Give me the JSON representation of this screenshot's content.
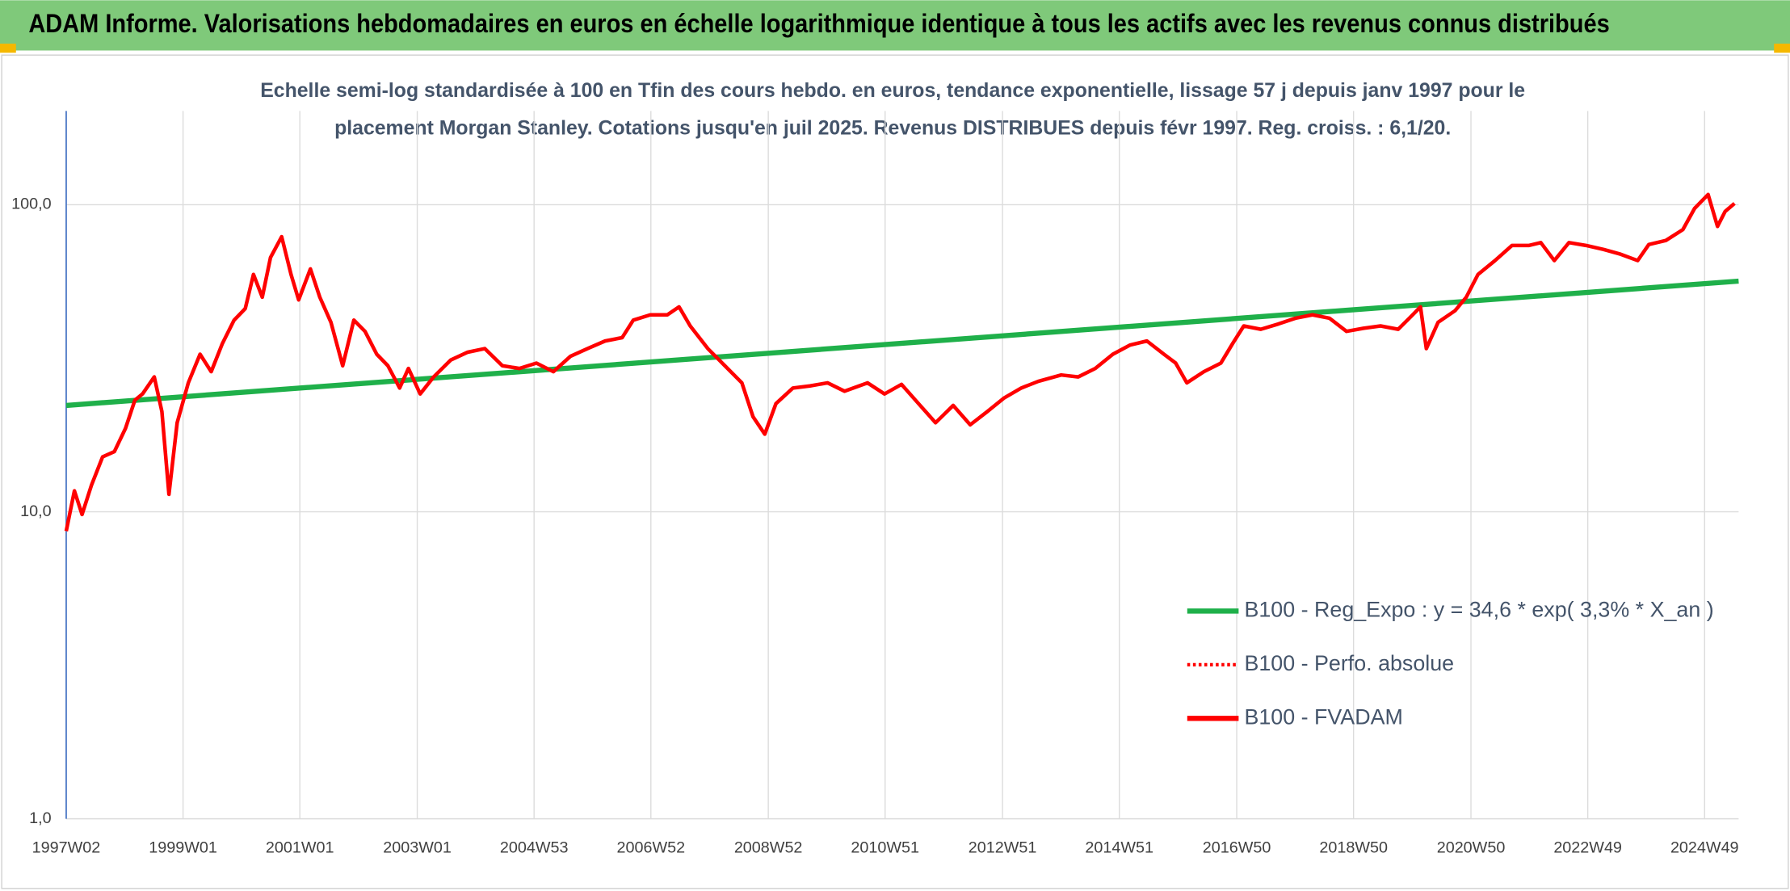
{
  "chart_data": {
    "type": "line",
    "header": "ADAM Informe. Valorisations hebdomadaires en euros en échelle logarithmique identique à tous les actifs avec les revenus connus distribués",
    "subtitle": [
      "Echelle semi-log standardisée à 100 en Tfin des cours hebdo. en euros, tendance exponentielle, lissage 57 j depuis janv 1997 pour le",
      "placement Morgan Stanley. Cotations jusqu'en juil 2025. Revenus DISTRIBUES depuis févr 1997. Reg. croiss. : 6,1/20."
    ],
    "log_scale": true,
    "grid": true,
    "legend": "lower right",
    "xlim": [
      1997.02,
      2025.51
    ],
    "xticks": [
      {
        "value": 1997.02,
        "label": "1997W02"
      },
      {
        "value": 1999.01,
        "label": "1999W01"
      },
      {
        "value": 2001.0,
        "label": "2001W01"
      },
      {
        "value": 2003.0,
        "label": "2003W01"
      },
      {
        "value": 2004.99,
        "label": "2004W53"
      },
      {
        "value": 2006.98,
        "label": "2006W52"
      },
      {
        "value": 2008.98,
        "label": "2008W52"
      },
      {
        "value": 2010.97,
        "label": "2010W51"
      },
      {
        "value": 2012.97,
        "label": "2012W51"
      },
      {
        "value": 2014.96,
        "label": "2014W51"
      },
      {
        "value": 2016.96,
        "label": "2016W50"
      },
      {
        "value": 2018.95,
        "label": "2018W50"
      },
      {
        "value": 2020.95,
        "label": "2020W50"
      },
      {
        "value": 2022.94,
        "label": "2022W49"
      },
      {
        "value": 2024.93,
        "label": "2024W49"
      }
    ],
    "ylim": [
      1,
      202
    ],
    "yticks": [
      {
        "value": 1,
        "label": "1,0"
      },
      {
        "value": 10,
        "label": "10,0"
      },
      {
        "value": 100,
        "label": "100,0"
      }
    ],
    "series": [
      {
        "name": "B100 - Reg_Expo : y = 34,6 * exp( 3,3% *  X_an )",
        "color": "#1fb04a",
        "style": "solid",
        "x": [
          1997.02,
          2025.51
        ],
        "values": [
          22.2,
          56.4
        ]
      },
      {
        "name": "B100 - Perfo. absolue",
        "color": "#ff0000",
        "style": "dotted"
      },
      {
        "name": "B100 - FVADAM",
        "color": "#ff0000",
        "style": "solid",
        "x": [
          1997.02,
          1997.16,
          1997.29,
          1997.45,
          1997.64,
          1997.84,
          1998.03,
          1998.19,
          1998.32,
          1998.52,
          1998.65,
          1998.77,
          1998.91,
          1999.1,
          1999.3,
          1999.49,
          1999.68,
          1999.88,
          2000.07,
          2000.21,
          2000.36,
          2000.5,
          2000.69,
          2000.85,
          2000.98,
          2001.18,
          2001.34,
          2001.53,
          2001.73,
          2001.92,
          2002.11,
          2002.31,
          2002.5,
          2002.7,
          2002.85,
          2003.05,
          2003.28,
          2003.57,
          2003.86,
          2004.15,
          2004.45,
          2004.74,
          2005.03,
          2005.32,
          2005.61,
          2005.9,
          2006.2,
          2006.49,
          2006.68,
          2006.97,
          2007.26,
          2007.46,
          2007.65,
          2007.95,
          2008.24,
          2008.53,
          2008.72,
          2008.92,
          2009.11,
          2009.4,
          2009.69,
          2009.99,
          2010.28,
          2010.67,
          2010.96,
          2011.25,
          2011.54,
          2011.83,
          2012.13,
          2012.42,
          2012.71,
          2013.0,
          2013.29,
          2013.58,
          2013.97,
          2014.26,
          2014.55,
          2014.85,
          2015.14,
          2015.43,
          2015.72,
          2015.92,
          2016.11,
          2016.4,
          2016.69,
          2016.89,
          2017.08,
          2017.37,
          2017.67,
          2017.96,
          2018.25,
          2018.54,
          2018.83,
          2019.12,
          2019.41,
          2019.71,
          2019.9,
          2020.09,
          2020.19,
          2020.39,
          2020.68,
          2020.87,
          2021.07,
          2021.36,
          2021.65,
          2021.94,
          2022.14,
          2022.37,
          2022.62,
          2022.91,
          2023.21,
          2023.5,
          2023.79,
          2023.98,
          2024.27,
          2024.56,
          2024.76,
          2024.99,
          2025.15,
          2025.28,
          2025.44
        ],
        "values": [
          8.65,
          11.7,
          9.8,
          12.2,
          15.1,
          15.7,
          18.7,
          23.1,
          24.2,
          27.5,
          21.2,
          11.4,
          19.5,
          26.3,
          32.6,
          28.6,
          35.3,
          42.1,
          45.9,
          59.3,
          50.0,
          67.3,
          78.7,
          59.3,
          49.0,
          61.8,
          50.0,
          41.4,
          29.9,
          42.1,
          38.7,
          32.6,
          29.9,
          25.3,
          29.3,
          24.2,
          27.5,
          31.2,
          33.1,
          34.0,
          29.9,
          29.3,
          30.5,
          28.6,
          32.1,
          34.0,
          36.0,
          36.9,
          42.1,
          43.8,
          43.8,
          46.5,
          40.3,
          34.0,
          29.9,
          26.3,
          20.4,
          17.9,
          22.5,
          25.3,
          25.7,
          26.3,
          24.7,
          26.3,
          24.2,
          26.0,
          22.5,
          19.5,
          22.2,
          19.2,
          21.2,
          23.5,
          25.3,
          26.6,
          27.9,
          27.5,
          29.3,
          32.6,
          34.9,
          36.0,
          32.6,
          30.5,
          26.3,
          28.6,
          30.5,
          35.3,
          40.3,
          39.3,
          40.9,
          42.7,
          43.8,
          42.7,
          38.7,
          39.6,
          40.3,
          39.3,
          42.7,
          46.5,
          34.0,
          41.4,
          45.2,
          50.0,
          59.3,
          65.8,
          73.7,
          73.7,
          75.3,
          65.8,
          75.3,
          73.7,
          71.5,
          69.0,
          65.8,
          74.2,
          76.5,
          83.0,
          97.3,
          108,
          85.0,
          95.1,
          101
        ]
      }
    ]
  }
}
